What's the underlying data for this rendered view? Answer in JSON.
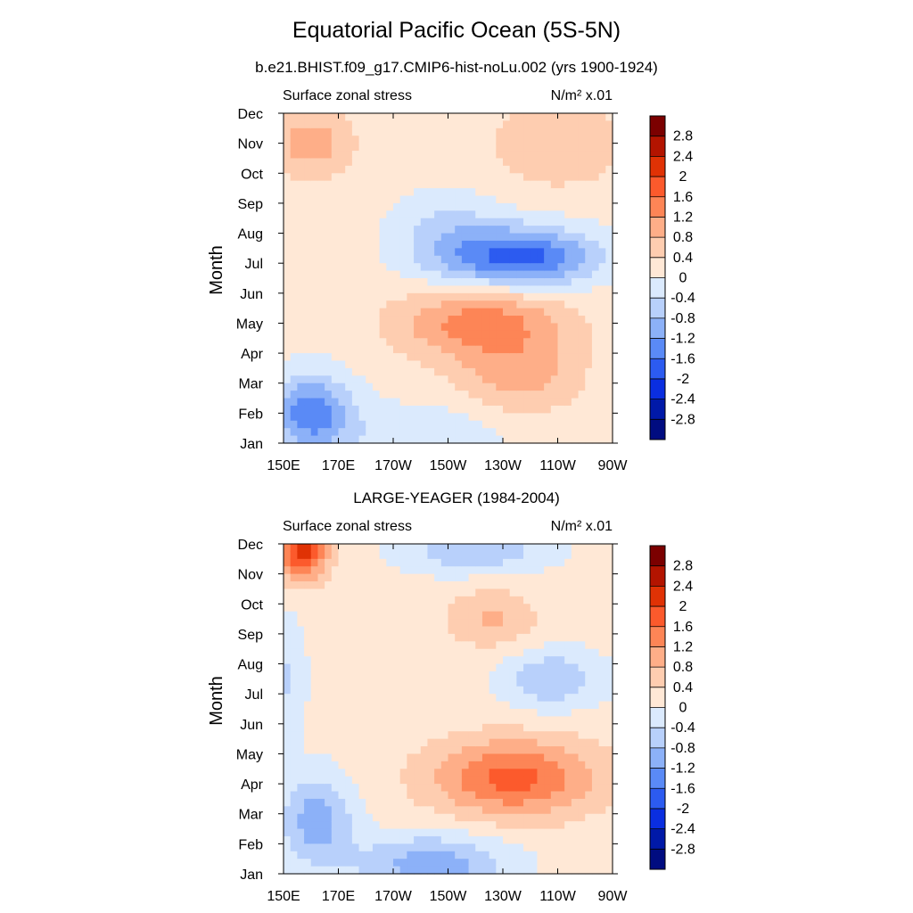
{
  "title": "Equatorial Pacific Ocean (5S-5N)",
  "colorbar_levels": [
    "2.8",
    "2.4",
    "2",
    "1.6",
    "1.2",
    "0.8",
    "0.4",
    "0",
    "-0.4",
    "-0.8",
    "-1.2",
    "-1.6",
    "-2",
    "-2.4",
    "-2.8"
  ],
  "colors": {
    "scale": [
      "#7b0000",
      "#b31400",
      "#e03205",
      "#fc5a2c",
      "#fd8556",
      "#feae88",
      "#fecdb0",
      "#ffe8d6",
      "#dbeafd",
      "#b8d0fb",
      "#8cb1f8",
      "#5a8af6",
      "#2c5bf0",
      "#0a2ee0",
      "#0019a8",
      "#000c80"
    ]
  },
  "chart_data": [
    {
      "type": "heatmap",
      "title": "b.e21.BHIST.f09_g17.CMIP6-hist-noLu.002 (yrs 1900-1924)",
      "left_label": "Surface zonal stress",
      "right_label": "N/m² x.01",
      "ylabel": "Month",
      "xlabel": "",
      "x_ticks": [
        "150E",
        "170E",
        "170W",
        "150W",
        "130W",
        "110W",
        "90W"
      ],
      "y_ticks": [
        "Jan",
        "Feb",
        "Mar",
        "Apr",
        "May",
        "Jun",
        "Jul",
        "Aug",
        "Sep",
        "Oct",
        "Nov",
        "Dec"
      ],
      "xlim": [
        150,
        270
      ],
      "ylim": [
        0,
        11
      ],
      "colorbar_levels": [
        -2.8,
        -2.4,
        -2,
        -1.6,
        -1.2,
        -0.8,
        -0.4,
        0,
        0.4,
        0.8,
        1.2,
        1.6,
        2,
        2.4,
        2.8
      ],
      "features": [
        {
          "x": 160,
          "y": 1.0,
          "amp": -1.6,
          "sx": 15,
          "sy": 1.3
        },
        {
          "x": 200,
          "y": 0.3,
          "amp": -0.5,
          "sx": 30,
          "sy": 1.0
        },
        {
          "x": 222,
          "y": 4.0,
          "amp": 1.3,
          "sx": 30,
          "sy": 1.2
        },
        {
          "x": 236,
          "y": 2.2,
          "amp": 0.8,
          "sx": 22,
          "sy": 1.2
        },
        {
          "x": 238,
          "y": 6.2,
          "amp": -1.9,
          "sx": 26,
          "sy": 1.0
        },
        {
          "x": 210,
          "y": 6.8,
          "amp": -0.7,
          "sx": 20,
          "sy": 1.5
        },
        {
          "x": 160,
          "y": 10.0,
          "amp": 0.9,
          "sx": 15,
          "sy": 1.1
        },
        {
          "x": 250,
          "y": 10.0,
          "amp": 0.6,
          "sx": 25,
          "sy": 1.5
        }
      ]
    },
    {
      "type": "heatmap",
      "title": "LARGE-YEAGER (1984-2004)",
      "left_label": "Surface zonal stress",
      "right_label": "N/m² x.01",
      "ylabel": "Month",
      "xlabel": "",
      "x_ticks": [
        "150E",
        "170E",
        "170W",
        "150W",
        "130W",
        "110W",
        "90W"
      ],
      "y_ticks": [
        "Jan",
        "Feb",
        "Mar",
        "Apr",
        "May",
        "Jun",
        "Jul",
        "Aug",
        "Sep",
        "Oct",
        "Nov",
        "Dec"
      ],
      "xlim": [
        150,
        270
      ],
      "ylim": [
        0,
        11
      ],
      "colorbar_levels": [
        -2.8,
        -2.4,
        -2,
        -1.6,
        -1.2,
        -0.8,
        -0.4,
        0,
        0.4,
        0.8,
        1.2,
        1.6,
        2,
        2.4,
        2.8
      ],
      "features": [
        {
          "x": 157,
          "y": 10.8,
          "amp": 2.0,
          "sx": 9,
          "sy": 1.0
        },
        {
          "x": 162,
          "y": 1.8,
          "amp": -1.2,
          "sx": 13,
          "sy": 1.5
        },
        {
          "x": 204,
          "y": 0.3,
          "amp": -1.2,
          "sx": 28,
          "sy": 1.0
        },
        {
          "x": 234,
          "y": 3.2,
          "amp": 1.6,
          "sx": 30,
          "sy": 1.3
        },
        {
          "x": 248,
          "y": 6.5,
          "amp": -0.9,
          "sx": 18,
          "sy": 1.0
        },
        {
          "x": 226,
          "y": 8.5,
          "amp": 0.7,
          "sx": 16,
          "sy": 1.0
        },
        {
          "x": 220,
          "y": 10.8,
          "amp": -0.9,
          "sx": 26,
          "sy": 0.8
        },
        {
          "x": 152,
          "y": 6.5,
          "amp": -0.6,
          "sx": 6,
          "sy": 2.0
        }
      ]
    }
  ]
}
